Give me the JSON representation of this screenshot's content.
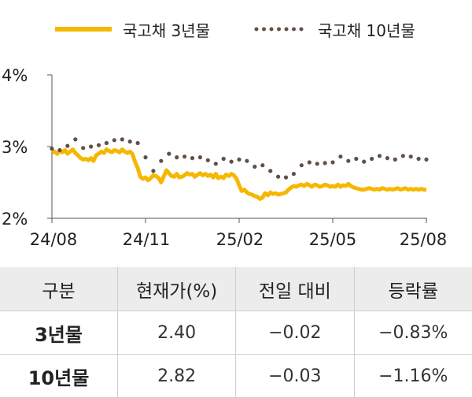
{
  "chart_data": {
    "type": "line",
    "y_ticks": [
      "4%",
      "3%",
      "2%"
    ],
    "x_ticks": [
      "24/08",
      "24/11",
      "25/02",
      "25/05",
      "25/08"
    ],
    "ylim": [
      2,
      4
    ],
    "grid": false,
    "legend_position": "top",
    "series": [
      {
        "name": "국고채 3년물",
        "color": "#f5b700",
        "style": "solid",
        "x": [
          0.0,
          0.08,
          0.17,
          0.25,
          0.33,
          0.42,
          0.5,
          0.58,
          0.67,
          0.75,
          0.83,
          0.92,
          1.0,
          1.08,
          1.17,
          1.25,
          1.33,
          1.42,
          1.5,
          1.58,
          1.67,
          1.75,
          1.83,
          1.92,
          2.0,
          2.08,
          2.17,
          2.25,
          2.33,
          2.42,
          2.5,
          2.58,
          2.67,
          2.75,
          2.83,
          2.92,
          3.0,
          3.08,
          3.17,
          3.25,
          3.33,
          3.42,
          3.5,
          3.58,
          3.67,
          3.75,
          3.83,
          3.92,
          4.0,
          4.08,
          4.17,
          4.25,
          4.33,
          4.42,
          4.5,
          4.58,
          4.67,
          4.75,
          4.83,
          4.92,
          5.0,
          5.08,
          5.17,
          5.25,
          5.33,
          5.42,
          5.5,
          5.58,
          5.67,
          5.75,
          5.83,
          5.92,
          6.0,
          6.08,
          6.17,
          6.25,
          6.33,
          6.42,
          6.5,
          6.58,
          6.67,
          6.75,
          6.83,
          6.92,
          7.0,
          7.08,
          7.17,
          7.25,
          7.33,
          7.42,
          7.5,
          7.58,
          7.67,
          7.75,
          7.83,
          7.92,
          8.0,
          8.08,
          8.17,
          8.25,
          8.33,
          8.42,
          8.5,
          8.58,
          8.67,
          8.75,
          8.83,
          8.92,
          9.0,
          9.08,
          9.17,
          9.25,
          9.33,
          9.42,
          9.5,
          9.58,
          9.67,
          9.75,
          9.83,
          9.92,
          10.0,
          10.08,
          10.17,
          10.25,
          10.33,
          10.42,
          10.5,
          10.58,
          10.67,
          10.75,
          10.83,
          10.92,
          11.0,
          11.08,
          11.17,
          11.25,
          11.33,
          11.42,
          11.5,
          11.58,
          11.67,
          11.75,
          11.83,
          11.92,
          12.0
        ],
        "values": [
          2.92,
          2.93,
          2.9,
          2.94,
          2.92,
          2.95,
          2.9,
          2.93,
          2.96,
          2.91,
          2.88,
          2.84,
          2.82,
          2.83,
          2.81,
          2.84,
          2.8,
          2.88,
          2.9,
          2.93,
          2.91,
          2.96,
          2.94,
          2.92,
          2.95,
          2.94,
          2.92,
          2.96,
          2.93,
          2.91,
          2.93,
          2.9,
          2.78,
          2.7,
          2.58,
          2.55,
          2.57,
          2.53,
          2.56,
          2.6,
          2.59,
          2.56,
          2.5,
          2.58,
          2.67,
          2.63,
          2.59,
          2.58,
          2.62,
          2.57,
          2.58,
          2.6,
          2.63,
          2.61,
          2.62,
          2.58,
          2.61,
          2.63,
          2.6,
          2.62,
          2.59,
          2.61,
          2.57,
          2.62,
          2.56,
          2.58,
          2.56,
          2.61,
          2.59,
          2.62,
          2.6,
          2.55,
          2.46,
          2.38,
          2.4,
          2.36,
          2.34,
          2.33,
          2.31,
          2.3,
          2.27,
          2.29,
          2.35,
          2.32,
          2.36,
          2.34,
          2.35,
          2.33,
          2.34,
          2.35,
          2.36,
          2.4,
          2.43,
          2.45,
          2.44,
          2.46,
          2.47,
          2.45,
          2.48,
          2.46,
          2.44,
          2.47,
          2.46,
          2.44,
          2.45,
          2.47,
          2.46,
          2.44,
          2.45,
          2.44,
          2.47,
          2.44,
          2.46,
          2.45,
          2.48,
          2.45,
          2.43,
          2.42,
          2.41,
          2.4,
          2.4,
          2.41,
          2.42,
          2.41,
          2.4,
          2.41,
          2.4,
          2.42,
          2.41,
          2.4,
          2.41,
          2.4,
          2.41,
          2.42,
          2.4,
          2.41,
          2.42,
          2.4,
          2.41,
          2.4,
          2.41,
          2.4,
          2.41,
          2.4,
          2.4
        ]
      },
      {
        "name": "국고채 10년물",
        "color": "#5f5148",
        "style": "dotted",
        "x": [
          0.0,
          0.25,
          0.5,
          0.75,
          1.0,
          1.25,
          1.5,
          1.75,
          2.0,
          2.25,
          2.5,
          2.75,
          3.0,
          3.25,
          3.5,
          3.75,
          4.0,
          4.25,
          4.5,
          4.75,
          5.0,
          5.25,
          5.5,
          5.75,
          6.0,
          6.25,
          6.5,
          6.75,
          7.0,
          7.25,
          7.5,
          7.75,
          8.0,
          8.25,
          8.5,
          8.75,
          9.0,
          9.25,
          9.5,
          9.75,
          10.0,
          10.25,
          10.5,
          10.75,
          11.0,
          11.25,
          11.5,
          11.75,
          12.0
        ],
        "values": [
          2.97,
          2.95,
          3.01,
          3.1,
          2.98,
          3.0,
          3.02,
          3.05,
          3.09,
          3.1,
          3.07,
          3.05,
          2.85,
          2.66,
          2.8,
          2.9,
          2.85,
          2.86,
          2.84,
          2.85,
          2.81,
          2.76,
          2.83,
          2.79,
          2.82,
          2.8,
          2.72,
          2.74,
          2.66,
          2.58,
          2.57,
          2.62,
          2.74,
          2.78,
          2.76,
          2.77,
          2.78,
          2.86,
          2.8,
          2.83,
          2.79,
          2.83,
          2.87,
          2.84,
          2.82,
          2.87,
          2.86,
          2.83,
          2.82
        ]
      }
    ]
  },
  "table": {
    "headers": [
      "구분",
      "현재가(%)",
      "전일 대비",
      "등락률"
    ],
    "rows": [
      {
        "label": "3년물",
        "price": "2.40",
        "change": "−0.02",
        "rate": "−0.83%"
      },
      {
        "label": "10년물",
        "price": "2.82",
        "change": "−0.03",
        "rate": "−1.16%"
      }
    ]
  }
}
